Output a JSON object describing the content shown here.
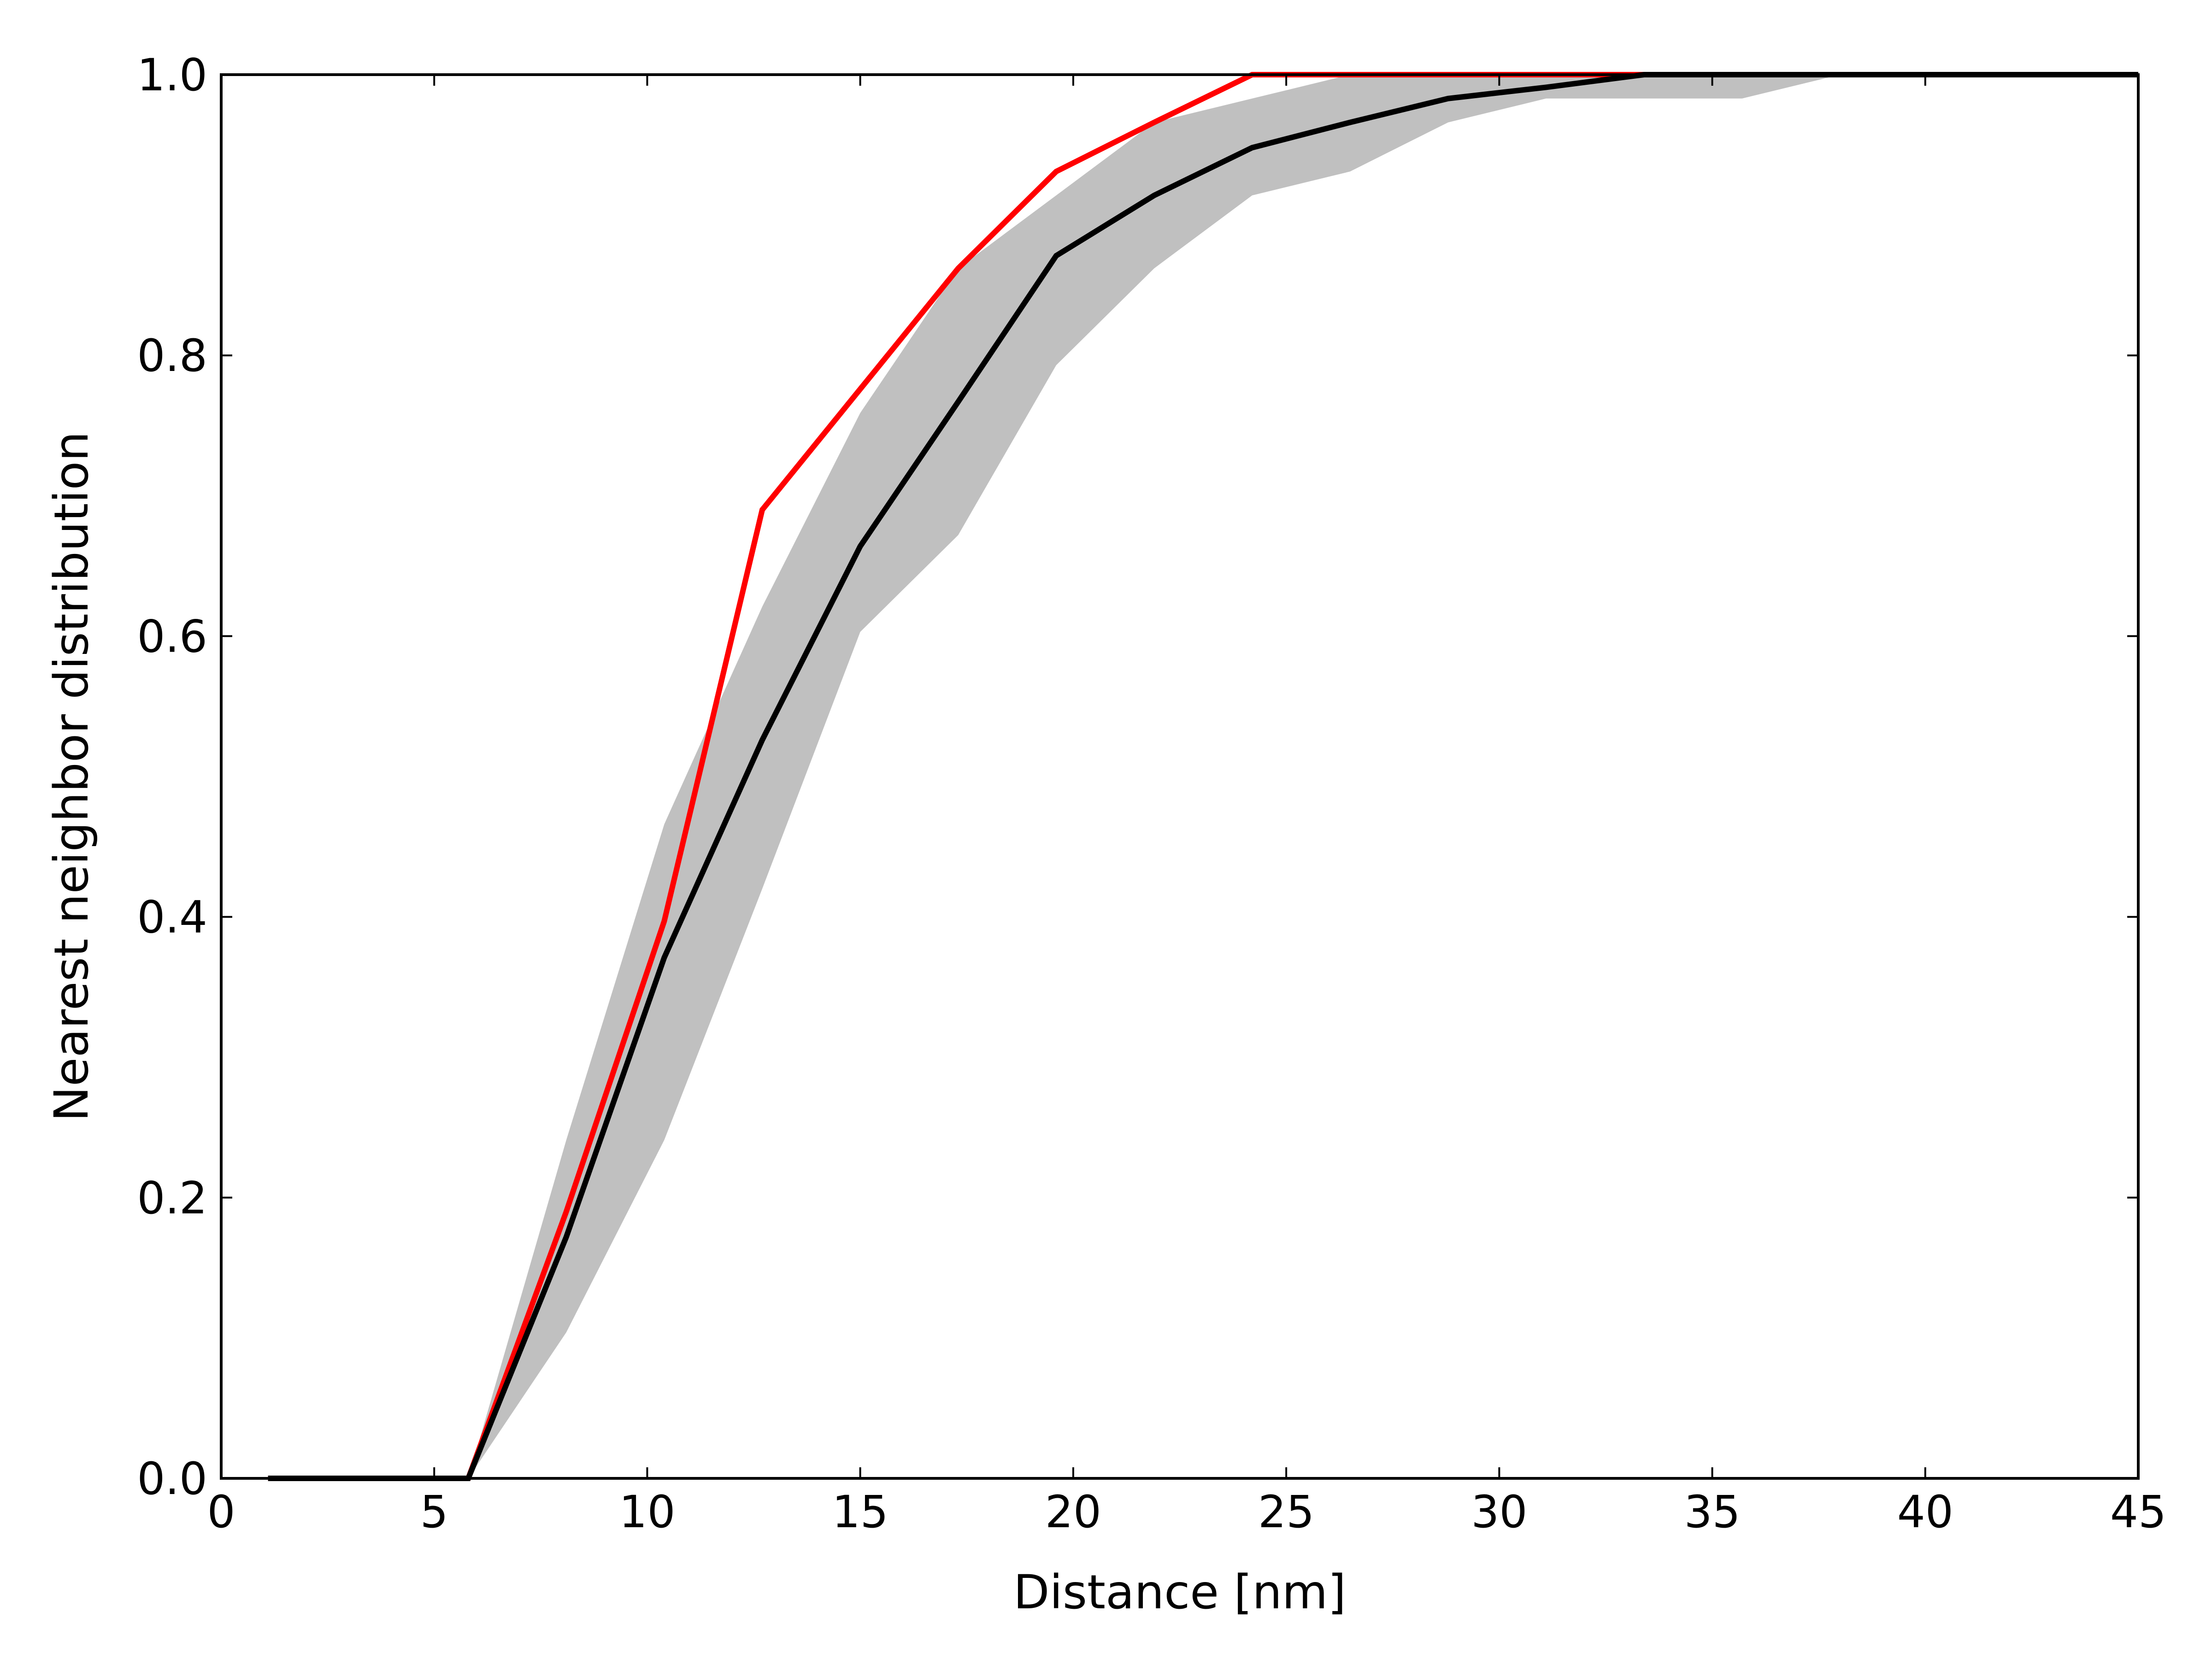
{
  "chart_data": {
    "type": "line",
    "title": "",
    "xlabel": "Distance [nm]",
    "ylabel": "Nearest neighbor distribution",
    "xlim": [
      0,
      45
    ],
    "ylim": [
      0,
      1.0
    ],
    "x_ticks": [
      0,
      5,
      10,
      15,
      20,
      25,
      30,
      35,
      40,
      45
    ],
    "y_ticks": [
      0.0,
      0.2,
      0.4,
      0.6,
      0.8,
      1.0
    ],
    "x_tick_labels": [
      "0",
      "5",
      "10",
      "15",
      "20",
      "25",
      "30",
      "35",
      "40",
      "45"
    ],
    "y_tick_labels": [
      "0.0",
      "0.2",
      "0.4",
      "0.6",
      "0.8",
      "1.0"
    ],
    "grid": false,
    "legend": "none",
    "band": {
      "color": "#c0c0c0",
      "x": [
        5.8,
        8.1,
        10.4,
        12.7,
        15.0,
        17.3,
        19.6,
        21.9,
        24.2,
        26.5,
        28.8,
        31.1,
        33.4,
        35.7,
        38.0,
        45.0
      ],
      "lower": [
        0.0,
        0.104,
        0.241,
        0.42,
        0.603,
        0.672,
        0.793,
        0.862,
        0.914,
        0.931,
        0.966,
        0.983,
        0.983,
        0.983,
        1.0,
        1.0
      ],
      "upper": [
        0.0,
        0.241,
        0.466,
        0.621,
        0.759,
        0.862,
        0.914,
        0.966,
        0.983,
        1.0,
        1.0,
        1.0,
        1.0,
        1.0,
        1.0,
        1.0
      ]
    },
    "series": [
      {
        "color": "#ff0000",
        "x": [
          1.1,
          5.8,
          8.1,
          10.4,
          12.7,
          15.0,
          17.3,
          19.6,
          21.9,
          24.2,
          45.0
        ],
        "values": [
          0.0,
          0.0,
          0.19,
          0.397,
          0.69,
          0.776,
          0.862,
          0.931,
          0.966,
          1.0,
          1.0
        ]
      },
      {
        "color": "#000000",
        "x": [
          1.1,
          5.8,
          8.1,
          10.4,
          12.7,
          15.0,
          17.3,
          19.6,
          21.9,
          24.2,
          26.5,
          28.8,
          31.1,
          33.4,
          45.0
        ],
        "values": [
          0.0,
          0.0,
          0.172,
          0.371,
          0.526,
          0.664,
          0.767,
          0.871,
          0.914,
          0.948,
          0.966,
          0.983,
          0.991,
          1.0,
          1.0
        ]
      }
    ]
  }
}
